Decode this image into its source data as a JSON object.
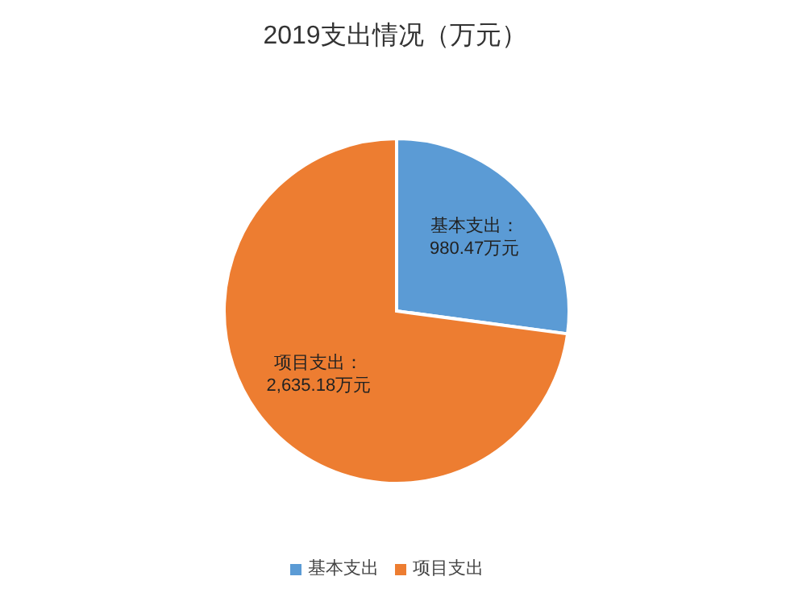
{
  "chart_data": {
    "type": "pie",
    "title": "2019支出情况（万元）",
    "categories": [
      "基本支出",
      "项目支出"
    ],
    "values": [
      980.47,
      2635.18
    ],
    "colors": [
      "#5b9bd5",
      "#ed7d31"
    ],
    "value_labels": [
      "基本支出：\n980.47万元",
      "项目支出：\n2,635.18万元"
    ],
    "legend": "bottom"
  }
}
